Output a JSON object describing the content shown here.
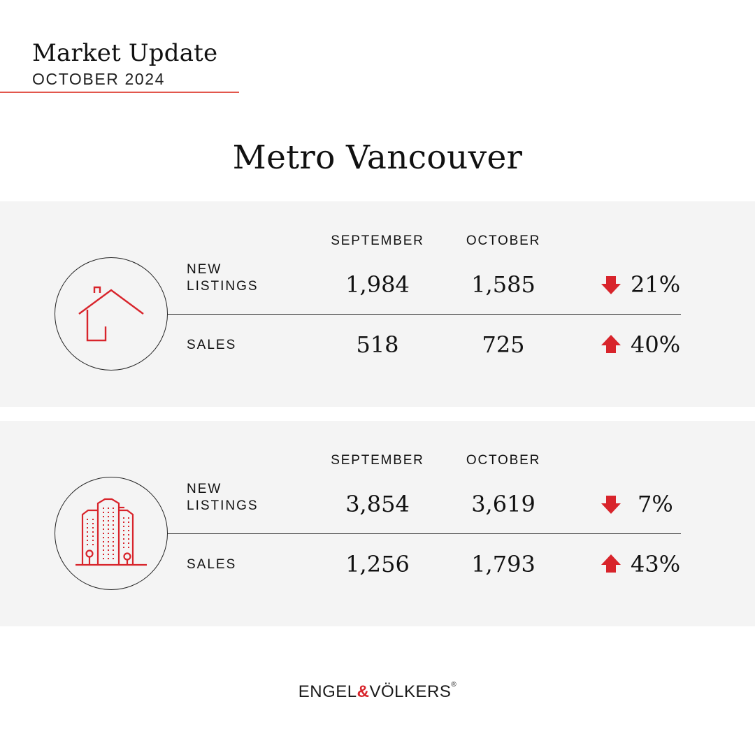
{
  "header": {
    "title": "Market Update",
    "subtitle": "OCTOBER 2024"
  },
  "region": "Metro Vancouver",
  "columns": {
    "prev": "SEPTEMBER",
    "curr": "OCTOBER"
  },
  "panels": [
    {
      "icon": "house-icon",
      "rows": [
        {
          "label_line1": "NEW",
          "label_line2": "LISTINGS",
          "prev": "1,984",
          "curr": "1,585",
          "direction": "down",
          "change": "21%"
        },
        {
          "label_line1": "SALES",
          "label_line2": "",
          "prev": "518",
          "curr": "725",
          "direction": "up",
          "change": "40%"
        }
      ]
    },
    {
      "icon": "condo-towers-icon",
      "rows": [
        {
          "label_line1": "NEW",
          "label_line2": "LISTINGS",
          "prev": "3,854",
          "curr": "3,619",
          "direction": "down",
          "change": "7%"
        },
        {
          "label_line1": "SALES",
          "label_line2": "",
          "prev": "1,256",
          "curr": "1,793",
          "direction": "up",
          "change": "43%"
        }
      ]
    }
  ],
  "logo": {
    "left": "ENGEL",
    "amp": "&",
    "right": "VÖLKERS",
    "reg": "®"
  },
  "colors": {
    "accent": "#d8242b",
    "rule": "#e2574c",
    "panel_bg": "#f4f4f4"
  }
}
